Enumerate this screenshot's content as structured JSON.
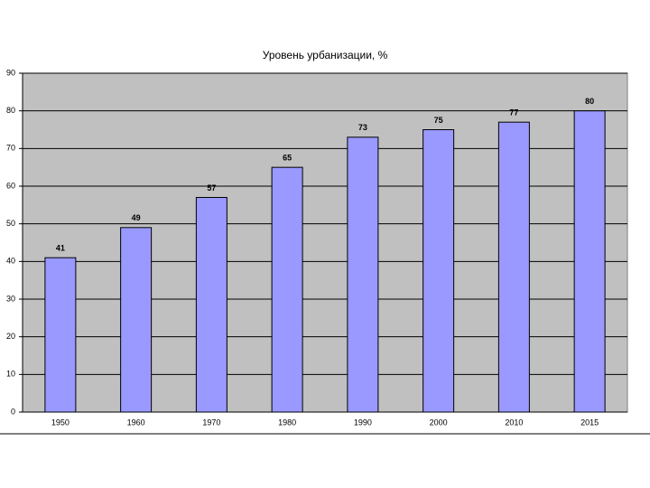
{
  "chart_data": {
    "type": "bar",
    "title": "Уровень урбанизации, %",
    "categories": [
      "1950",
      "1960",
      "1970",
      "1980",
      "1990",
      "2000",
      "2010",
      "2015"
    ],
    "values": [
      41,
      49,
      57,
      65,
      73,
      75,
      77,
      80
    ],
    "color": "#9999ff",
    "ylim": [
      0,
      90
    ],
    "yticks": [
      0,
      10,
      20,
      30,
      40,
      50,
      60,
      70,
      80,
      90
    ],
    "grid": true
  }
}
